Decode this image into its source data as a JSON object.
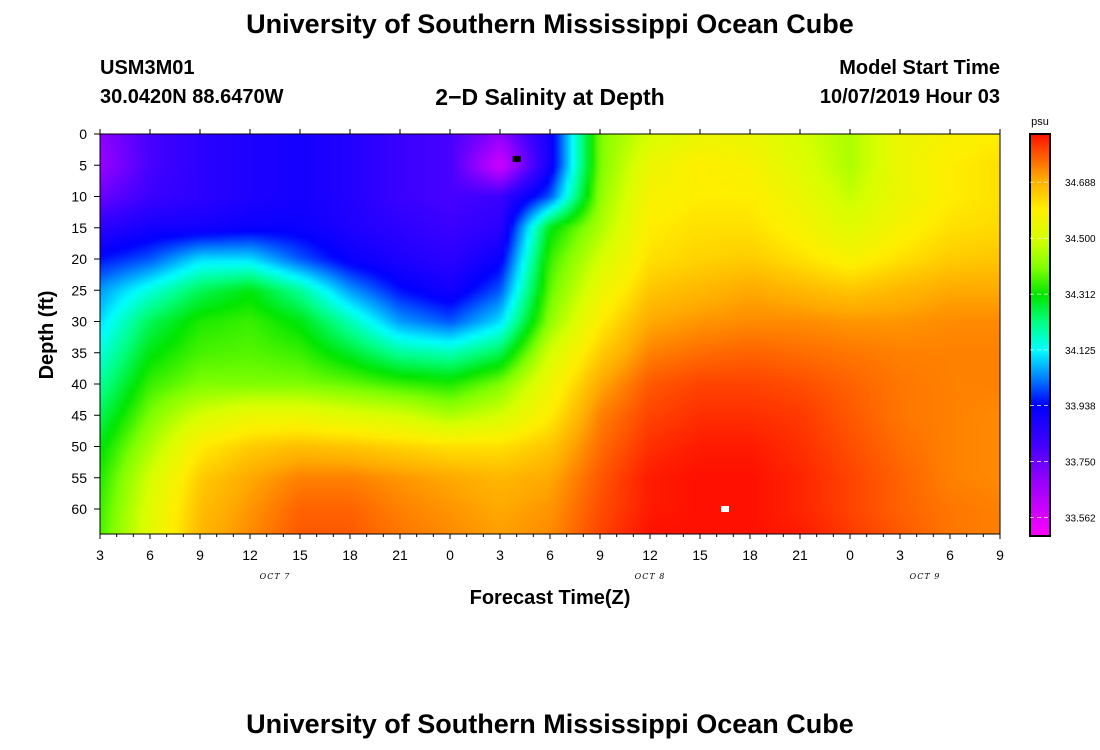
{
  "header": {
    "title": "University of Southern Mississippi Ocean Cube",
    "station_id": "USM3M01",
    "coordinates": "30.0420N 88.6470W",
    "plot_name": "2−D Salinity at Depth",
    "model_start_label": "Model Start Time",
    "model_start_value": "10/07/2019 Hour 03"
  },
  "footer": {
    "title": "University of Southern Mississippi Ocean Cube"
  },
  "chart_data": {
    "type": "heatmap",
    "title": "2−D Salinity at Depth",
    "xlabel": "Forecast Time(Z)",
    "ylabel": "Depth (ft)",
    "x_tick_labels": [
      "3",
      "6",
      "9",
      "12",
      "15",
      "18",
      "21",
      "0",
      "3",
      "6",
      "9",
      "12",
      "15",
      "18",
      "21",
      "0",
      "3",
      "6",
      "9"
    ],
    "x_hours_from_start": [
      0,
      3,
      6,
      9,
      12,
      15,
      18,
      21,
      24,
      27,
      30,
      33,
      36,
      39,
      42,
      45,
      48,
      51,
      54
    ],
    "xlim_hours": [
      0,
      54
    ],
    "date_labels": [
      {
        "text": "OCT 7",
        "hour": 10.5
      },
      {
        "text": "OCT 8",
        "hour": 33
      },
      {
        "text": "OCT 9",
        "hour": 49.5
      }
    ],
    "y_ticks": [
      0,
      5,
      10,
      15,
      20,
      25,
      30,
      35,
      40,
      45,
      50,
      55,
      60
    ],
    "ylim": [
      0,
      64
    ],
    "y_inverted": true,
    "colorbar": {
      "unit": "psu",
      "min": 33.5,
      "max": 34.85,
      "tick_values": [
        34.688,
        34.5,
        34.312,
        34.125,
        33.938,
        33.75,
        33.562
      ],
      "tick_labels": [
        "34.688",
        "34.500",
        "34.312",
        "34.125",
        "33.938",
        "33.750",
        "33.562"
      ],
      "stops": [
        {
          "value": 33.5,
          "color": "#ff00ff"
        },
        {
          "value": 33.68,
          "color": "#9a00ff"
        },
        {
          "value": 33.82,
          "color": "#3a00ff"
        },
        {
          "value": 33.94,
          "color": "#0000ff"
        },
        {
          "value": 34.03,
          "color": "#0080ff"
        },
        {
          "value": 34.125,
          "color": "#00ffff"
        },
        {
          "value": 34.22,
          "color": "#00ff80"
        },
        {
          "value": 34.31,
          "color": "#00e600"
        },
        {
          "value": 34.4,
          "color": "#80ff00"
        },
        {
          "value": 34.5,
          "color": "#d8ff00"
        },
        {
          "value": 34.6,
          "color": "#ffee00"
        },
        {
          "value": 34.7,
          "color": "#ffaa00"
        },
        {
          "value": 34.85,
          "color": "#ff1000"
        }
      ]
    },
    "salinity_grid": {
      "hours": [
        0,
        3,
        6,
        9,
        12,
        15,
        18,
        21,
        24,
        27,
        30,
        33,
        36,
        39,
        42,
        45,
        48,
        51,
        54
      ],
      "depths": [
        0,
        5,
        10,
        15,
        20,
        25,
        30,
        35,
        40,
        45,
        50,
        55,
        60,
        64
      ],
      "values": [
        [
          33.7,
          33.8,
          33.85,
          33.88,
          33.9,
          33.87,
          33.82,
          33.8,
          33.7,
          33.9,
          34.4,
          34.5,
          34.55,
          34.55,
          34.5,
          34.45,
          34.55,
          34.58,
          34.6
        ],
        [
          33.68,
          33.8,
          33.85,
          33.88,
          33.9,
          33.87,
          33.82,
          33.8,
          33.58,
          33.9,
          34.4,
          34.55,
          34.6,
          34.58,
          34.52,
          34.45,
          34.55,
          34.6,
          34.62
        ],
        [
          33.75,
          33.82,
          33.85,
          33.88,
          33.9,
          33.87,
          33.82,
          33.8,
          33.82,
          34.0,
          34.42,
          34.58,
          34.6,
          34.6,
          34.55,
          34.48,
          34.55,
          34.6,
          34.62
        ],
        [
          33.85,
          33.9,
          33.9,
          33.92,
          33.92,
          33.88,
          33.85,
          33.82,
          33.85,
          34.3,
          34.45,
          34.6,
          34.62,
          34.62,
          34.58,
          34.52,
          34.58,
          34.62,
          34.63
        ],
        [
          33.95,
          34.0,
          34.1,
          34.1,
          34.0,
          33.92,
          33.88,
          33.85,
          33.92,
          34.35,
          34.5,
          34.62,
          34.64,
          34.65,
          34.62,
          34.58,
          34.62,
          34.65,
          34.66
        ],
        [
          34.05,
          34.15,
          34.25,
          34.3,
          34.2,
          34.05,
          33.95,
          33.9,
          34.0,
          34.38,
          34.55,
          34.66,
          34.68,
          34.7,
          34.68,
          34.66,
          34.68,
          34.7,
          34.7
        ],
        [
          34.1,
          34.25,
          34.33,
          34.35,
          34.3,
          34.18,
          34.05,
          34.0,
          34.1,
          34.42,
          34.6,
          34.7,
          34.72,
          34.73,
          34.73,
          34.72,
          34.72,
          34.73,
          34.73
        ],
        [
          34.15,
          34.3,
          34.36,
          34.37,
          34.35,
          34.28,
          34.2,
          34.18,
          34.25,
          34.5,
          34.65,
          34.74,
          34.76,
          34.77,
          34.76,
          34.75,
          34.74,
          34.74,
          34.74
        ],
        [
          34.2,
          34.35,
          34.4,
          34.4,
          34.4,
          34.38,
          34.35,
          34.33,
          34.4,
          34.56,
          34.7,
          34.78,
          34.8,
          34.8,
          34.79,
          34.77,
          34.75,
          34.74,
          34.74
        ],
        [
          34.25,
          34.4,
          34.5,
          34.55,
          34.55,
          34.52,
          34.5,
          34.45,
          34.5,
          34.6,
          34.74,
          34.8,
          34.82,
          34.82,
          34.81,
          34.78,
          34.75,
          34.74,
          34.73
        ],
        [
          34.3,
          34.45,
          34.6,
          34.65,
          34.67,
          34.66,
          34.64,
          34.62,
          34.62,
          34.66,
          34.76,
          34.82,
          34.84,
          34.84,
          34.82,
          34.79,
          34.76,
          34.74,
          34.73
        ],
        [
          34.33,
          34.5,
          34.65,
          34.7,
          34.74,
          34.74,
          34.72,
          34.7,
          34.68,
          34.7,
          34.78,
          34.84,
          34.85,
          34.85,
          34.83,
          34.8,
          34.77,
          34.74,
          34.73
        ],
        [
          34.35,
          34.52,
          34.67,
          34.72,
          34.77,
          34.77,
          34.74,
          34.72,
          34.7,
          34.72,
          34.79,
          34.84,
          34.85,
          34.85,
          34.83,
          34.8,
          34.77,
          34.75,
          34.74
        ],
        [
          34.36,
          34.53,
          34.68,
          34.73,
          34.78,
          34.78,
          34.75,
          34.73,
          34.71,
          34.73,
          34.8,
          34.85,
          34.85,
          34.85,
          34.84,
          34.81,
          34.78,
          34.75,
          34.74
        ]
      ]
    },
    "markers": [
      {
        "name": "minimum-marker",
        "hour": 25,
        "depth": 4,
        "color": "#000000"
      },
      {
        "name": "maximum-marker",
        "hour": 37.5,
        "depth": 60,
        "color": "#ffffff"
      }
    ]
  }
}
